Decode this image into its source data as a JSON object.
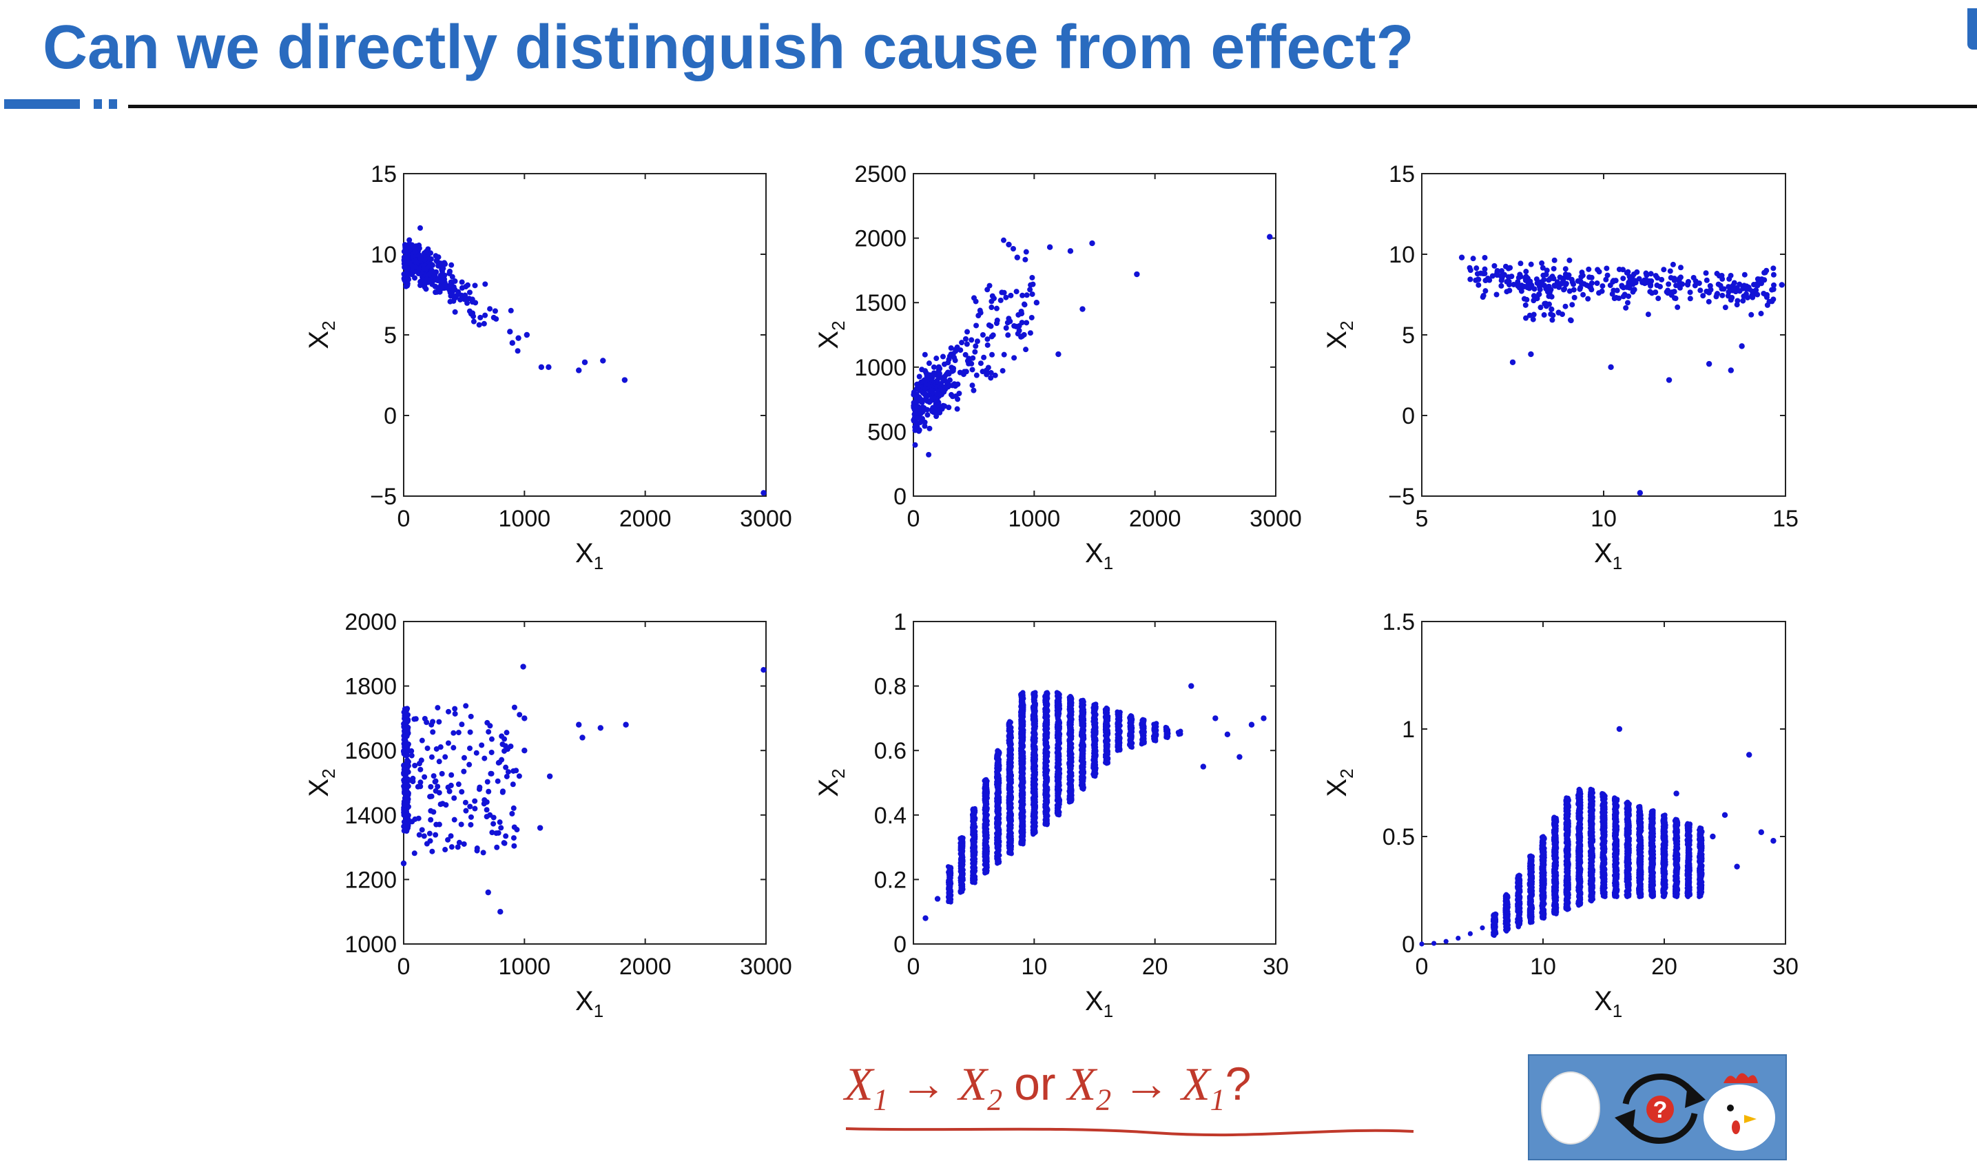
{
  "title": "Can we directly distinguish cause from effect?",
  "colors": {
    "title": "#2a6bbf",
    "points": "#1212d6",
    "question": "#c0392b",
    "image_bg": "#5b8fc9"
  },
  "question": {
    "x1": "X",
    "sub1": "1",
    "arrow": "→",
    "x2": "X",
    "sub2": "2",
    "or": "or",
    "tail": "?"
  },
  "image": {
    "name": "chicken-and-egg-icon",
    "description_icons": [
      "egg-icon",
      "cycle-arrows-icon",
      "question-mark-icon",
      "chicken-icon"
    ]
  },
  "chart_data": [
    {
      "type": "scatter",
      "xlabel": "X",
      "xlabel_sub": "1",
      "ylabel": "X",
      "ylabel_sub": "2",
      "xlim": [
        0,
        3000
      ],
      "ylim": [
        -5,
        15
      ],
      "xticks": [
        0,
        1000,
        2000,
        3000
      ],
      "yticks": [
        -5,
        0,
        5,
        10,
        15
      ],
      "ytick_labels": [
        "−5",
        "0",
        "5",
        "10",
        "15"
      ],
      "pattern": "decreasing",
      "points": [
        [
          1140,
          3
        ],
        [
          1200,
          3
        ],
        [
          1450,
          2.8
        ],
        [
          1500,
          3.3
        ],
        [
          1650,
          3.4
        ],
        [
          1830,
          2.2
        ],
        [
          2980,
          -4.8
        ],
        [
          1020,
          5
        ],
        [
          950,
          4.8
        ],
        [
          900,
          4.5
        ],
        [
          880,
          5.2
        ]
      ]
    },
    {
      "type": "scatter",
      "xlabel": "X",
      "xlabel_sub": "1",
      "ylabel": "X",
      "ylabel_sub": "2",
      "xlim": [
        0,
        3000
      ],
      "ylim": [
        0,
        2500
      ],
      "xticks": [
        0,
        1000,
        2000,
        3000
      ],
      "yticks": [
        0,
        500,
        1000,
        1500,
        2000,
        2500
      ],
      "pattern": "increasing",
      "points": [
        [
          790,
          1950
        ],
        [
          1130,
          1930
        ],
        [
          1300,
          1900
        ],
        [
          1480,
          1960
        ],
        [
          1850,
          1720
        ],
        [
          2950,
          2010
        ],
        [
          1400,
          1450
        ],
        [
          1200,
          1100
        ],
        [
          860,
          1850
        ],
        [
          1020,
          1500
        ]
      ]
    },
    {
      "type": "scatter",
      "xlabel": "X",
      "xlabel_sub": "1",
      "ylabel": "X",
      "ylabel_sub": "2",
      "xlim": [
        5,
        15
      ],
      "ylim": [
        -5,
        15
      ],
      "xticks": [
        5,
        10,
        15
      ],
      "yticks": [
        -5,
        0,
        5,
        10,
        15
      ],
      "ytick_labels": [
        "−5",
        "0",
        "5",
        "10",
        "15"
      ],
      "pattern": "flat",
      "points": [
        [
          11,
          -4.8
        ],
        [
          7.5,
          3.3
        ],
        [
          10.2,
          3
        ],
        [
          11.8,
          2.2
        ],
        [
          13.5,
          2.8
        ],
        [
          13.8,
          4.3
        ],
        [
          14.9,
          8.1
        ],
        [
          6.1,
          9.8
        ],
        [
          8,
          3.8
        ],
        [
          12.9,
          3.2
        ]
      ]
    },
    {
      "type": "scatter",
      "xlabel": "X",
      "xlabel_sub": "1",
      "ylabel": "X",
      "ylabel_sub": "2",
      "xlim": [
        0,
        3000
      ],
      "ylim": [
        1000,
        2000
      ],
      "xticks": [
        0,
        1000,
        2000,
        3000
      ],
      "yticks": [
        1000,
        1200,
        1400,
        1600,
        1800,
        2000
      ],
      "pattern": "uncorrelated",
      "points": [
        [
          2980,
          1850
        ],
        [
          1450,
          1680
        ],
        [
          1480,
          1640
        ],
        [
          1630,
          1670
        ],
        [
          1840,
          1680
        ],
        [
          700,
          1160
        ],
        [
          800,
          1100
        ],
        [
          0,
          1250
        ],
        [
          1130,
          1360
        ],
        [
          1210,
          1520
        ],
        [
          1000,
          1600
        ],
        [
          1000,
          1700
        ],
        [
          990,
          1860
        ]
      ]
    },
    {
      "type": "scatter",
      "xlabel": "X",
      "xlabel_sub": "1",
      "ylabel": "X",
      "ylabel_sub": "2",
      "xlim": [
        0,
        30
      ],
      "ylim": [
        0,
        1
      ],
      "xticks": [
        0,
        10,
        20,
        30
      ],
      "yticks": [
        0,
        0.2,
        0.4,
        0.6,
        0.8,
        1
      ],
      "pattern": "discrete-x concave",
      "points": [
        [
          1,
          0.08
        ],
        [
          2,
          0.14
        ],
        [
          23,
          0.8
        ],
        [
          25,
          0.7
        ],
        [
          26,
          0.65
        ],
        [
          27,
          0.58
        ],
        [
          28,
          0.68
        ],
        [
          29,
          0.7
        ],
        [
          24,
          0.55
        ]
      ]
    },
    {
      "type": "scatter",
      "xlabel": "X",
      "xlabel_sub": "1",
      "ylabel": "X",
      "ylabel_sub": "2",
      "xlim": [
        0,
        30
      ],
      "ylim": [
        0,
        1.5
      ],
      "xticks": [
        0,
        10,
        20,
        30
      ],
      "yticks": [
        0,
        0.5,
        1,
        1.5
      ],
      "pattern": "discrete-x threshold increasing",
      "points": [
        [
          16.3,
          1.0
        ],
        [
          27,
          0.88
        ],
        [
          25,
          0.6
        ],
        [
          24,
          0.5
        ],
        [
          26,
          0.36
        ],
        [
          28,
          0.52
        ],
        [
          29,
          0.48
        ],
        [
          21,
          0.7
        ]
      ]
    }
  ]
}
